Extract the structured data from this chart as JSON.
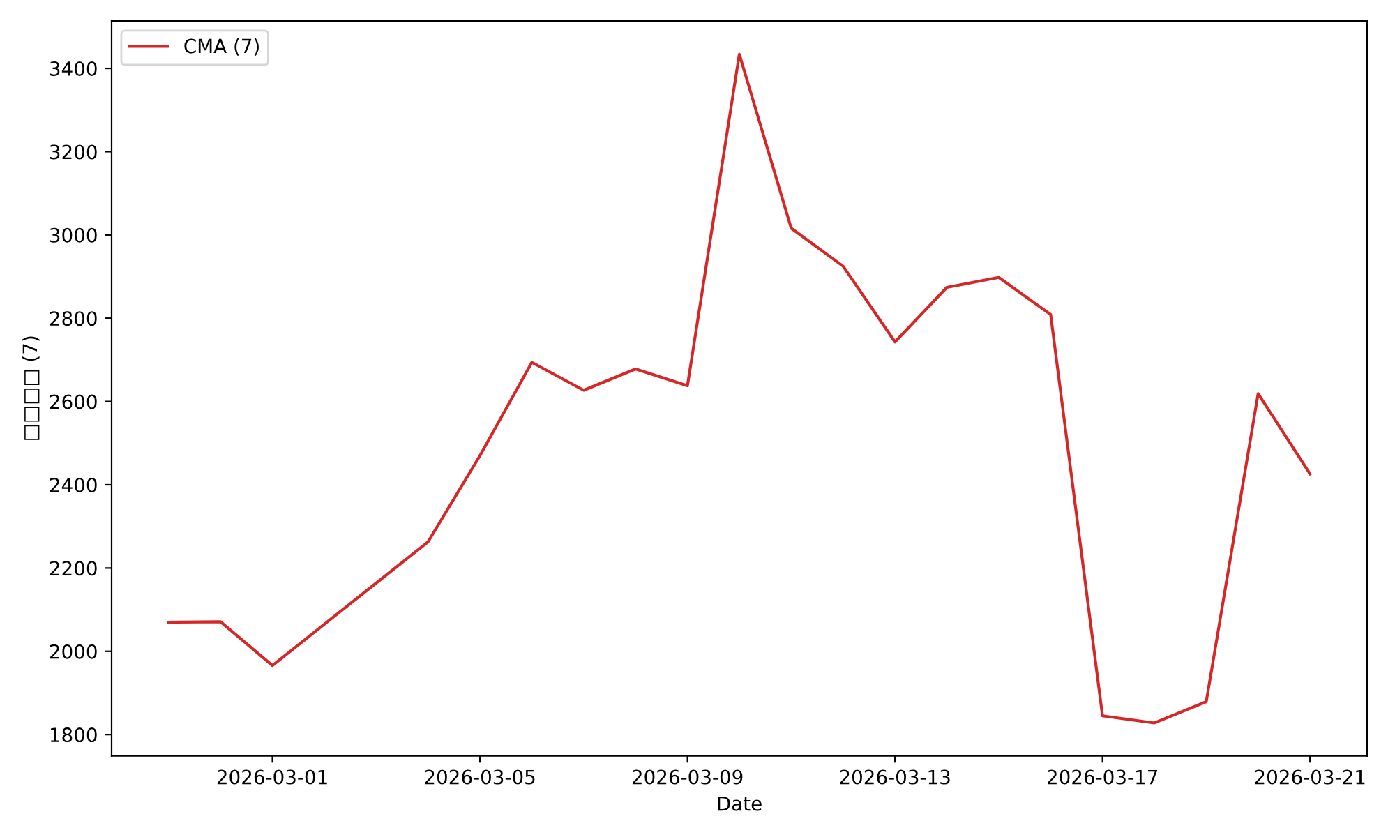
{
  "chart_data": {
    "type": "line",
    "xlabel": "Date",
    "ylabel": "□□□□ (7)",
    "x": [
      "2026-02-27",
      "2026-02-28",
      "2026-03-01",
      "2026-03-04",
      "2026-03-05",
      "2026-03-06",
      "2026-03-07",
      "2026-03-08",
      "2026-03-09",
      "2026-03-10",
      "2026-03-11",
      "2026-03-12",
      "2026-03-13",
      "2026-03-14",
      "2026-03-15",
      "2026-03-16",
      "2026-03-17",
      "2026-03-18",
      "2026-03-19",
      "2026-03-20",
      "2026-03-21"
    ],
    "series": [
      {
        "name": "CMA (7)",
        "color": "#d62728",
        "values": [
          2070,
          2071,
          1966,
          2263,
          2470,
          2694,
          2627,
          2678,
          2638,
          3434,
          3016,
          2925,
          2743,
          2874,
          2898,
          2809,
          1845,
          1828,
          1879,
          2619,
          2426
        ]
      }
    ],
    "xlim": [
      "2026-02-25T21:36",
      "2026-03-22T02:24"
    ],
    "ylim": [
      1749,
      3514
    ],
    "xticks": [
      "2026-03-01",
      "2026-03-05",
      "2026-03-09",
      "2026-03-13",
      "2026-03-17",
      "2026-03-21"
    ],
    "yticks": [
      1800,
      2000,
      2200,
      2400,
      2600,
      2800,
      3000,
      3200,
      3400
    ],
    "grid": false,
    "legend": "top left",
    "marker": "none",
    "line_style": "solid"
  }
}
